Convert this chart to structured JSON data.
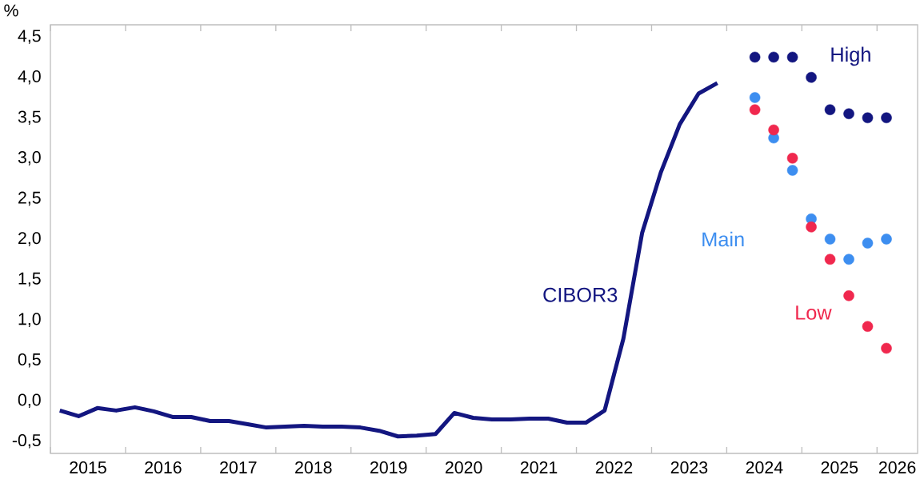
{
  "chart_data": {
    "type": "line",
    "ylabel": "%",
    "xlim": [
      2015,
      2026.54
    ],
    "ylim": [
      -0.65,
      4.65
    ],
    "xticks": [
      {
        "value": 2015,
        "label": null
      },
      {
        "value": 2016,
        "label": null
      },
      {
        "value": 2017,
        "label": null
      },
      {
        "value": 2018,
        "label": null
      },
      {
        "value": 2019,
        "label": null
      },
      {
        "value": 2020,
        "label": null
      },
      {
        "value": 2021,
        "label": null
      },
      {
        "value": 2022,
        "label": null
      },
      {
        "value": 2023,
        "label": null
      },
      {
        "value": 2024,
        "label": null
      },
      {
        "value": 2025,
        "label": null
      },
      {
        "value": 2026,
        "label": null
      },
      {
        "value": 2015.5,
        "label": "2015"
      },
      {
        "value": 2016.5,
        "label": "2016"
      },
      {
        "value": 2017.5,
        "label": "2017"
      },
      {
        "value": 2018.5,
        "label": "2018"
      },
      {
        "value": 2019.5,
        "label": "2019"
      },
      {
        "value": 2020.5,
        "label": "2020"
      },
      {
        "value": 2021.5,
        "label": "2021"
      },
      {
        "value": 2022.5,
        "label": "2022"
      },
      {
        "value": 2023.5,
        "label": "2023"
      },
      {
        "value": 2024.5,
        "label": "2024"
      },
      {
        "value": 2025.5,
        "label": "2025"
      },
      {
        "value": 2026.27,
        "label": "2026"
      }
    ],
    "yticks": [
      {
        "value": -0.5,
        "label": "-0,5"
      },
      {
        "value": 0,
        "label": "0,0"
      },
      {
        "value": 0.5,
        "label": "0,5"
      },
      {
        "value": 1,
        "label": "1,0"
      },
      {
        "value": 1.5,
        "label": "1,5"
      },
      {
        "value": 2,
        "label": "2,0"
      },
      {
        "value": 2.5,
        "label": "2,5"
      },
      {
        "value": 3,
        "label": "3,0"
      },
      {
        "value": 3.5,
        "label": "3,5"
      },
      {
        "value": 4,
        "label": "4,0"
      },
      {
        "value": 4.5,
        "label": "4,5"
      }
    ],
    "grid": false,
    "legend": false,
    "series": [
      {
        "name": "CIBOR3",
        "type": "line",
        "color": "#131680",
        "marker": "none",
        "line_style": "solid",
        "x": [
          2015.125,
          2015.375,
          2015.625,
          2015.875,
          2016.125,
          2016.375,
          2016.625,
          2016.875,
          2017.125,
          2017.375,
          2017.625,
          2017.875,
          2018.125,
          2018.375,
          2018.625,
          2018.875,
          2019.125,
          2019.375,
          2019.625,
          2019.875,
          2020.125,
          2020.375,
          2020.625,
          2020.875,
          2021.125,
          2021.375,
          2021.625,
          2021.875,
          2022.125,
          2022.375,
          2022.625,
          2022.875,
          2023.125,
          2023.375,
          2023.625,
          2023.875
        ],
        "values": [
          -0.12,
          -0.19,
          -0.09,
          -0.12,
          -0.08,
          -0.13,
          -0.2,
          -0.2,
          -0.25,
          -0.25,
          -0.29,
          -0.33,
          -0.32,
          -0.31,
          -0.32,
          -0.32,
          -0.33,
          -0.37,
          -0.44,
          -0.43,
          -0.41,
          -0.15,
          -0.21,
          -0.23,
          -0.23,
          -0.22,
          -0.22,
          -0.27,
          -0.27,
          -0.12,
          0.77,
          2.08,
          2.83,
          3.42,
          3.8,
          3.93
        ]
      },
      {
        "name": "High",
        "type": "scatter",
        "color": "#131680",
        "marker": "circle",
        "x": [
          2024.375,
          2024.625,
          2024.875,
          2025.125,
          2025.375,
          2025.625,
          2025.875,
          2026.125
        ],
        "values": [
          4.25,
          4.25,
          4.25,
          4.0,
          3.6,
          3.55,
          3.5,
          3.5
        ]
      },
      {
        "name": "Main",
        "type": "scatter",
        "color": "#3d8ef0",
        "marker": "circle",
        "x": [
          2024.375,
          2024.625,
          2024.875,
          2025.125,
          2025.375,
          2025.625,
          2025.875,
          2026.125
        ],
        "values": [
          3.75,
          3.25,
          2.85,
          2.25,
          2.0,
          1.75,
          1.95,
          2.0
        ]
      },
      {
        "name": "Low",
        "type": "scatter",
        "color": "#f0284e",
        "marker": "circle",
        "x": [
          2024.375,
          2024.625,
          2024.875,
          2025.125,
          2025.375,
          2025.625,
          2025.875,
          2026.125
        ],
        "values": [
          3.6,
          3.35,
          3.0,
          2.15,
          1.75,
          1.3,
          0.92,
          0.65
        ]
      }
    ]
  }
}
